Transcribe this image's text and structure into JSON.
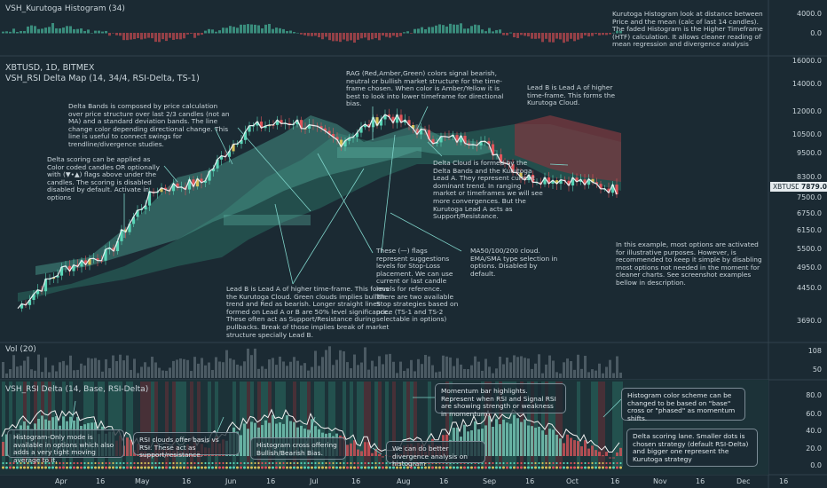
{
  "panes": {
    "histogram": {
      "title": "VSH_Kurutoga Histogram (34)",
      "ticks": [
        "4000.0",
        "0.0"
      ]
    },
    "main": {
      "title1": "XBTUSD, 1D, BITMEX",
      "title2": "VSH_RSI Delta Map (14, 34/4, RSI-Delta, TS-1)",
      "ticks": [
        "16000.0",
        "14000.0",
        "12000.0",
        "10500.0",
        "9500.0",
        "8300.0",
        "7879.0",
        "7500.0",
        "6750.0",
        "6150.0",
        "5500.0",
        "4950.0",
        "4450.0",
        "3690.0"
      ],
      "symbol_tag": "XBTUSD",
      "price_tag": "7879.0"
    },
    "volume": {
      "title": "Vol (20)",
      "ticks": [
        "108",
        "50"
      ]
    },
    "rsi": {
      "title": "VSH_RSI Delta (14, Base, RSI-Delta)",
      "ticks": [
        "80.0",
        "60.0",
        "40.0",
        "20.0",
        "0.0"
      ]
    }
  },
  "x_axis": {
    "labels": [
      "Apr",
      "16",
      "May",
      "16",
      "Jun",
      "16",
      "Jul",
      "16",
      "Aug",
      "16",
      "Sep",
      "16",
      "Oct",
      "16",
      "Nov",
      "16",
      "Dec",
      "16"
    ]
  },
  "annotations": {
    "histogram_note": "Kurutoga Histogram look at distance between Price and the mean (calc of last 14 candles). The faded Histogram is the Higher Timeframe (HTF) calculation. It allows cleaner reading of mean regression and divergence analysis",
    "rag": "RAG (Red,Amber,Green) colors signal bearish, neutral or bullish market structure for the time-frame chosen. When color is Amber/Yellow it is best to look into lower timeframe for directional bias.",
    "lead_b_top": "Lead B is Lead A of higher time-frame. This forms the Kurutoga Cloud.",
    "delta_bands": "Delta Bands is composed by price calculation over price structure over last 2/3 candles (not an MA) and a standard deviation bands. The line change color depending directional change. This line is useful to connect swings for trendline/divergence studies.",
    "delta_scoring": "Delta scoring can be applied as Color coded candles OR optionally with (▼•▲) flags above under the candles. The scoring is disabled disabled by default. Activate in options",
    "delta_cloud": "Delta Cloud is formed by the Delta Bands and the Kurutoga Lead A. They represent current dominant trend. In ranging market or timeframes we will see more convergences. But the Kurutoga Lead A acts as Support/Resistance.",
    "flags": "These (—) flags represent suggestions levels for Stop-Loss placement. We can use current or last candle levels for reference. There are two available Stop strategies based on price (TS-1 and TS-2 selectable in options)",
    "ma": "MA50/100/200 cloud. EMA/SMA type selection in options. Disabled by default.",
    "example": "In this example, most options are activated for illustrative purposes. However, is recommended to keep it simple by disabling most options not needed in the moment for cleaner charts. See screenshot examples bellow in description.",
    "lead_b_bottom": "Lead B is Lead A of higher time-frame. This forms the Kurutoga Cloud. Green clouds implies bullish trend and Red as bearish. Longer straight lines formed on Lead A or B are  50% level significance. These often act as Support/Resistance during pullbacks. Break of those implies break of market structure specially Lead B.",
    "momentum": "Momentum bar highlights. Represent when RSI and Signal RSI are showing strength or weakness in  momentum.",
    "hist_scheme": "Histogram color scheme can be changed to be based on \"base\" cross or \"phased\" as momentum shifts.",
    "hist_only": "Histogram-Only mode is available in options which also adds a very tight moving average to it.",
    "rsi_clouds": "RSI clouds offer basis vs RSI. These act as support/resistance.",
    "hist_cross": "Histogram cross offering Bullish/Bearish Bias.",
    "divergence": "We can do better divergence analysis on histogram",
    "scoring_lane": "Delta scoring lane. Smaller dots is chosen strategy (default RSI-Delta) and bigger one represent the Kurutoga strategy"
  },
  "colors": {
    "background": "#1b2a33",
    "bull": "#59d4b6",
    "bear": "#e0555b",
    "neutral": "#d6c05a"
  },
  "chart_data": {
    "type": "line",
    "title": "XBTUSD, 1D, BITMEX",
    "x": [
      "Apr",
      "16",
      "May",
      "16",
      "Jun",
      "16",
      "Jul",
      "16",
      "Aug",
      "16",
      "Sep",
      "16",
      "Oct",
      "16"
    ],
    "series": [
      {
        "name": "XBTUSD",
        "values": [
          4150,
          5150,
          5600,
          7900,
          8200,
          11000,
          11400,
          10200,
          11800,
          10400,
          10300,
          8400,
          8300,
          7879
        ]
      }
    ],
    "ylim": [
      3690,
      16000
    ]
  }
}
